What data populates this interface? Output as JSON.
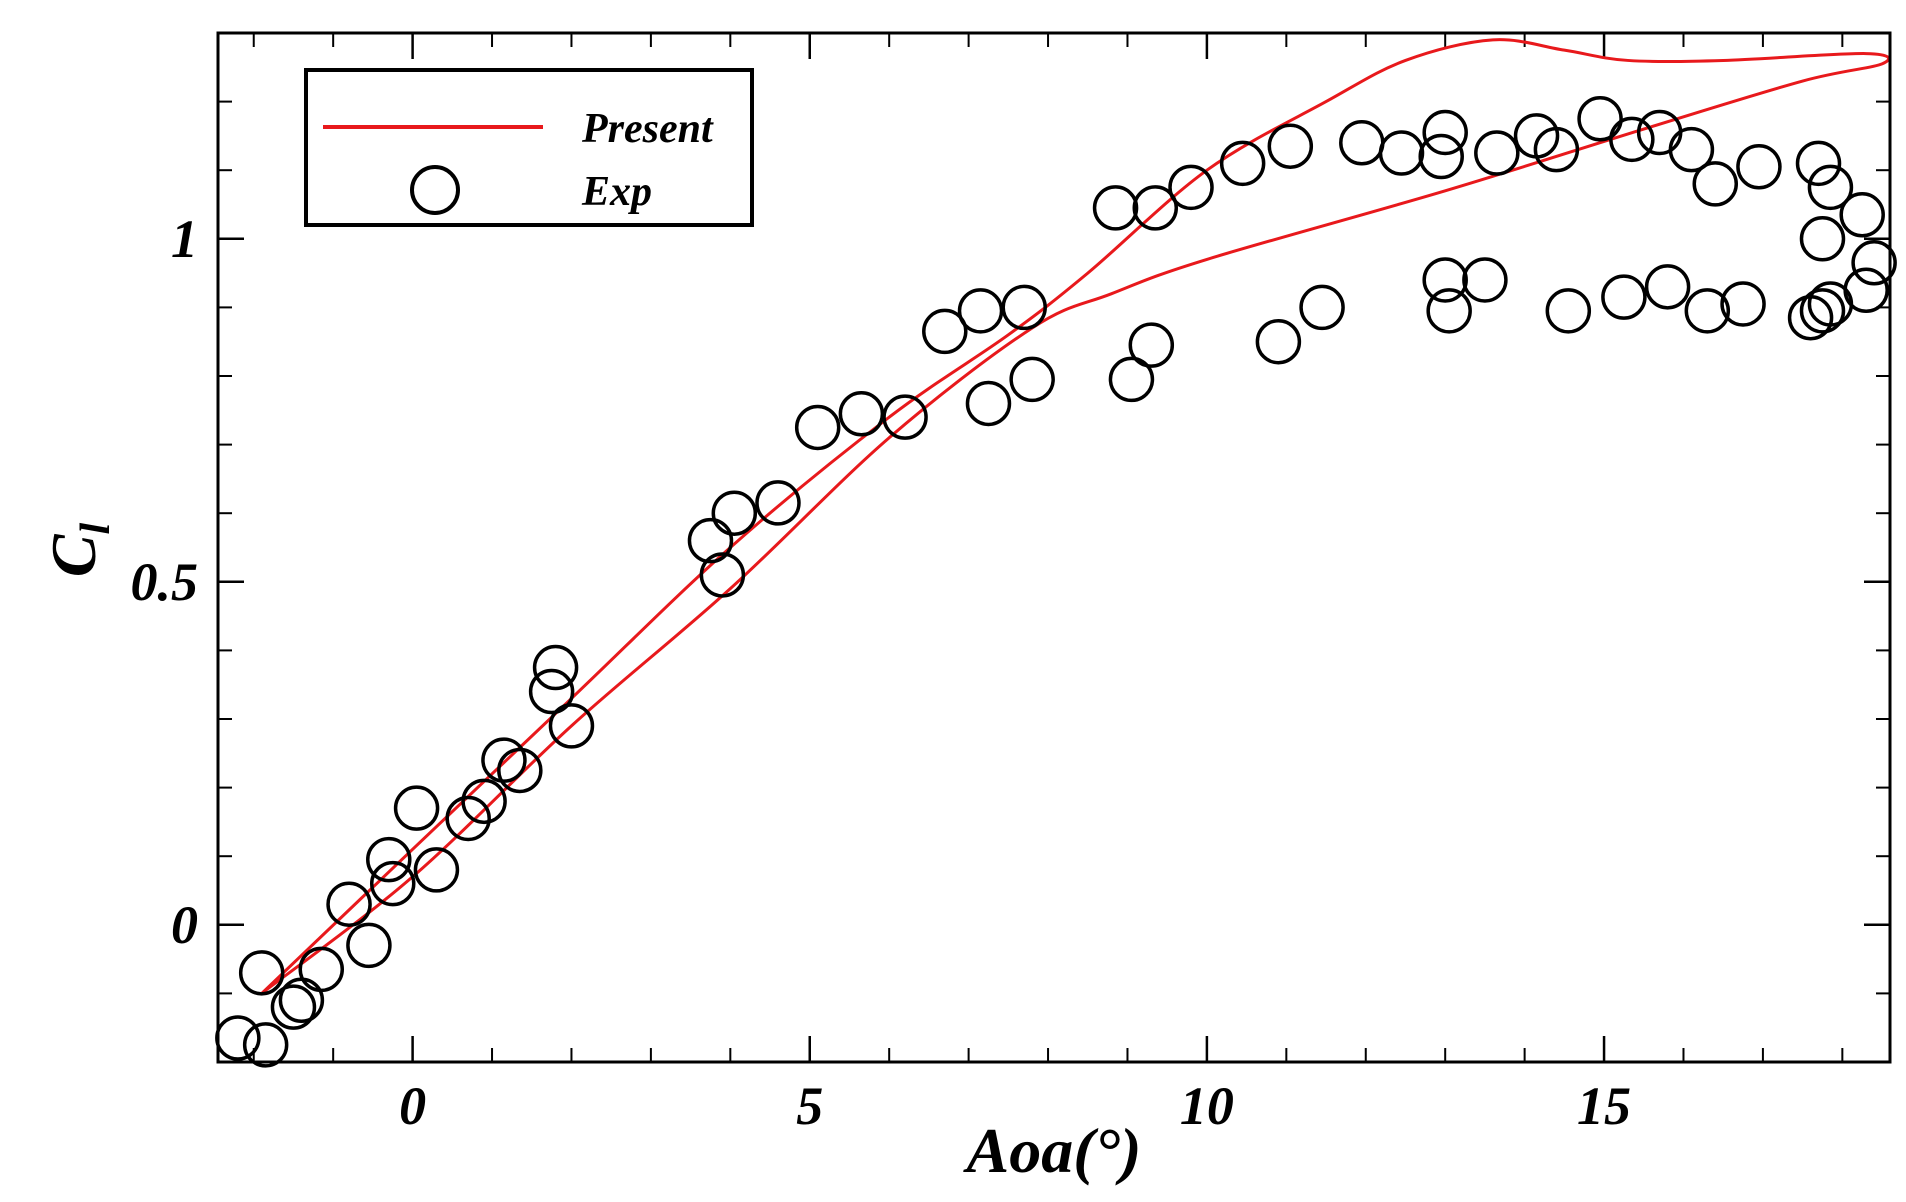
{
  "chart_data": {
    "type": "line+scatter",
    "title": "",
    "xlabel": "Aoa(°)",
    "ylabel_main": "C",
    "ylabel_sub": "l",
    "xlim": [
      -2.45,
      18.6
    ],
    "ylim": [
      -0.2,
      1.3
    ],
    "xticks_major": [
      0,
      5,
      10,
      15
    ],
    "xtick_labels": [
      "0",
      "5",
      "10",
      "15"
    ],
    "yticks_major": [
      0,
      0.5,
      1
    ],
    "ytick_labels": [
      "0",
      "0.5",
      "1"
    ],
    "grid": false,
    "legend_position": "top-left",
    "colors": {
      "present": "#e8191c",
      "exp": "#000000"
    },
    "series": [
      {
        "name": "Present",
        "kind": "line",
        "points": [
          [
            -1.9,
            -0.1
          ],
          [
            0,
            0.11
          ],
          [
            2,
            0.33
          ],
          [
            4,
            0.55
          ],
          [
            6,
            0.74
          ],
          [
            7.5,
            0.86
          ],
          [
            8.5,
            0.95
          ],
          [
            10,
            1.1
          ],
          [
            11.5,
            1.2
          ],
          [
            12.5,
            1.26
          ],
          [
            13.6,
            1.29
          ],
          [
            14.5,
            1.275
          ],
          [
            15.3,
            1.26
          ],
          [
            16.5,
            1.26
          ],
          [
            18.3,
            1.27
          ],
          [
            18.5,
            1.255
          ],
          [
            17.5,
            1.23
          ],
          [
            15.5,
            1.16
          ],
          [
            13,
            1.07
          ],
          [
            10,
            0.97
          ],
          [
            8.8,
            0.92
          ],
          [
            7.8,
            0.87
          ],
          [
            6,
            0.71
          ],
          [
            4,
            0.49
          ],
          [
            2,
            0.29
          ],
          [
            0,
            0.07
          ],
          [
            -1.9,
            -0.1
          ]
        ]
      },
      {
        "name": "Exp",
        "kind": "scatter",
        "points": [
          [
            -2.2,
            -0.165
          ],
          [
            -1.85,
            -0.175
          ],
          [
            -1.9,
            -0.07
          ],
          [
            -1.5,
            -0.12
          ],
          [
            -1.4,
            -0.11
          ],
          [
            -1.15,
            -0.065
          ],
          [
            -0.8,
            0.03
          ],
          [
            -0.55,
            -0.03
          ],
          [
            -0.25,
            0.06
          ],
          [
            -0.3,
            0.095
          ],
          [
            0.05,
            0.17
          ],
          [
            0.3,
            0.08
          ],
          [
            0.7,
            0.155
          ],
          [
            0.9,
            0.18
          ],
          [
            1.15,
            0.24
          ],
          [
            1.35,
            0.225
          ],
          [
            1.8,
            0.375
          ],
          [
            1.75,
            0.34
          ],
          [
            2.0,
            0.29
          ],
          [
            3.75,
            0.56
          ],
          [
            3.9,
            0.51
          ],
          [
            4.05,
            0.6
          ],
          [
            4.6,
            0.615
          ],
          [
            5.1,
            0.725
          ],
          [
            5.65,
            0.745
          ],
          [
            6.2,
            0.74
          ],
          [
            6.7,
            0.865
          ],
          [
            7.15,
            0.895
          ],
          [
            7.25,
            0.76
          ],
          [
            7.7,
            0.9
          ],
          [
            7.8,
            0.795
          ],
          [
            8.85,
            1.045
          ],
          [
            9.05,
            0.795
          ],
          [
            9.3,
            0.845
          ],
          [
            9.35,
            1.045
          ],
          [
            9.8,
            1.075
          ],
          [
            10.45,
            1.11
          ],
          [
            10.9,
            0.85
          ],
          [
            11.05,
            1.135
          ],
          [
            11.45,
            0.9
          ],
          [
            11.95,
            1.14
          ],
          [
            12.45,
            1.125
          ],
          [
            12.95,
            1.12
          ],
          [
            13.0,
            1.155
          ],
          [
            13.0,
            0.94
          ],
          [
            13.05,
            0.895
          ],
          [
            13.5,
            0.94
          ],
          [
            13.65,
            1.125
          ],
          [
            14.15,
            1.15
          ],
          [
            14.4,
            1.13
          ],
          [
            14.55,
            0.895
          ],
          [
            14.95,
            1.175
          ],
          [
            15.25,
            0.915
          ],
          [
            15.35,
            1.145
          ],
          [
            15.7,
            1.155
          ],
          [
            15.8,
            0.93
          ],
          [
            16.1,
            1.13
          ],
          [
            16.3,
            0.895
          ],
          [
            16.4,
            1.08
          ],
          [
            16.75,
            0.905
          ],
          [
            16.95,
            1.105
          ],
          [
            17.6,
            0.885
          ],
          [
            17.7,
            1.11
          ],
          [
            17.75,
            1.0
          ],
          [
            17.75,
            0.895
          ],
          [
            17.85,
            1.075
          ],
          [
            17.85,
            0.905
          ],
          [
            18.25,
            1.035
          ],
          [
            18.3,
            0.925
          ],
          [
            18.4,
            0.965
          ]
        ]
      }
    ]
  }
}
